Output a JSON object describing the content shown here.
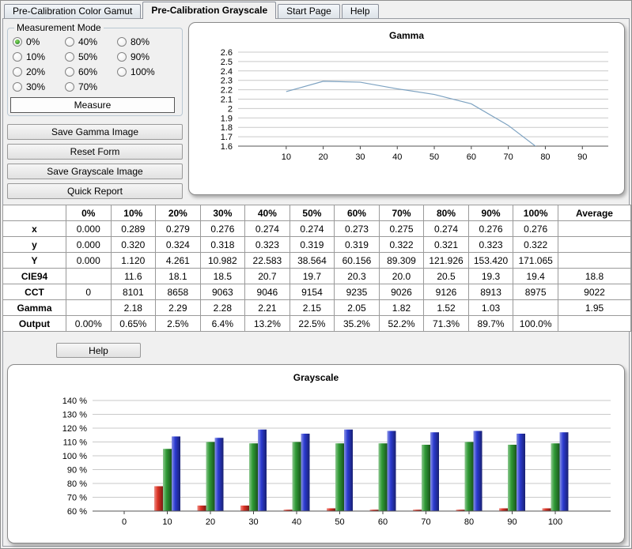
{
  "tabs": [
    {
      "label": "Pre-Calibration Color Gamut",
      "active": false
    },
    {
      "label": "Pre-Calibration Grayscale",
      "active": true
    },
    {
      "label": "Start Page",
      "active": false
    },
    {
      "label": "Help",
      "active": false
    }
  ],
  "measurement_mode": {
    "title": "Measurement Mode",
    "options": [
      "0%",
      "10%",
      "20%",
      "30%",
      "40%",
      "50%",
      "60%",
      "70%",
      "80%",
      "90%",
      "100%"
    ],
    "selected": "0%",
    "measure_label": "Measure"
  },
  "side_buttons": [
    {
      "label": "Save Gamma Image",
      "name": "save-gamma-image-button"
    },
    {
      "label": "Reset Form",
      "name": "reset-form-button"
    },
    {
      "label": "Save Grayscale Image",
      "name": "save-grayscale-image-button"
    },
    {
      "label": "Quick Report",
      "name": "quick-report-button"
    }
  ],
  "help_button": "Help",
  "table": {
    "headers": [
      "",
      "0%",
      "10%",
      "20%",
      "30%",
      "40%",
      "50%",
      "60%",
      "70%",
      "80%",
      "90%",
      "100%",
      "Average"
    ],
    "rows": [
      {
        "label": "x",
        "values": [
          "0.000",
          "0.289",
          "0.279",
          "0.276",
          "0.274",
          "0.274",
          "0.273",
          "0.275",
          "0.274",
          "0.276",
          "0.276",
          ""
        ]
      },
      {
        "label": "y",
        "values": [
          "0.000",
          "0.320",
          "0.324",
          "0.318",
          "0.323",
          "0.319",
          "0.319",
          "0.322",
          "0.321",
          "0.323",
          "0.322",
          ""
        ]
      },
      {
        "label": "Y",
        "values": [
          "0.000",
          "1.120",
          "4.261",
          "10.982",
          "22.583",
          "38.564",
          "60.156",
          "89.309",
          "121.926",
          "153.420",
          "171.065",
          ""
        ]
      },
      {
        "label": "CIE94",
        "values": [
          "",
          "11.6",
          "18.1",
          "18.5",
          "20.7",
          "19.7",
          "20.3",
          "20.0",
          "20.5",
          "19.3",
          "19.4",
          "18.8"
        ]
      },
      {
        "label": "CCT",
        "values": [
          "0",
          "8101",
          "8658",
          "9063",
          "9046",
          "9154",
          "9235",
          "9026",
          "9126",
          "8913",
          "8975",
          "9022"
        ]
      },
      {
        "label": "Gamma",
        "values": [
          "",
          "2.18",
          "2.29",
          "2.28",
          "2.21",
          "2.15",
          "2.05",
          "1.82",
          "1.52",
          "1.03",
          "",
          "1.95"
        ]
      },
      {
        "label": "Output",
        "values": [
          "0.00%",
          "0.65%",
          "2.5%",
          "6.4%",
          "13.2%",
          "22.5%",
          "35.2%",
          "52.2%",
          "71.3%",
          "89.7%",
          "100.0%",
          ""
        ]
      }
    ]
  },
  "chart_data": [
    {
      "type": "line",
      "title": "Gamma",
      "x": [
        10,
        20,
        30,
        40,
        50,
        60,
        70,
        80,
        90
      ],
      "values": [
        2.18,
        2.29,
        2.28,
        2.21,
        2.15,
        2.05,
        1.82,
        1.52,
        1.03
      ],
      "xticks": [
        10,
        20,
        30,
        40,
        50,
        60,
        70,
        80,
        90
      ],
      "yticks": [
        "2.6",
        "2.5",
        "2.4",
        "2.3",
        "2.2",
        "2.1",
        "2",
        "1.9",
        "1.8",
        "1.7",
        "1.6"
      ],
      "ylim": [
        1.6,
        2.6
      ],
      "grid": true,
      "legend": false,
      "line_color": "#7da2c1"
    },
    {
      "type": "bar",
      "title": "Grayscale",
      "categories": [
        0,
        10,
        20,
        30,
        40,
        50,
        60,
        70,
        80,
        90,
        100
      ],
      "series": [
        {
          "name": "red",
          "color": "#dd3325",
          "values": [
            null,
            78,
            64,
            64,
            61,
            62,
            61,
            61,
            61,
            62,
            62
          ]
        },
        {
          "name": "green",
          "color": "#2f9a35",
          "values": [
            null,
            105,
            110,
            109,
            110,
            109,
            109,
            108,
            110,
            108,
            109
          ]
        },
        {
          "name": "blue",
          "color": "#2b3bd0",
          "values": [
            null,
            114,
            113,
            119,
            116,
            119,
            118,
            117,
            118,
            116,
            117
          ]
        }
      ],
      "yticks": [
        "140 %",
        "130 %",
        "120 %",
        "110 %",
        "100 %",
        "90 %",
        "80 %",
        "70 %",
        "60 %"
      ],
      "ylim": [
        60,
        140
      ],
      "grid": true,
      "legend": false
    }
  ]
}
